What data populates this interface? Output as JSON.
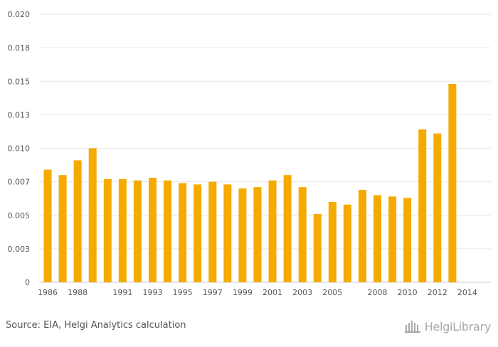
{
  "chart_data": {
    "type": "bar",
    "categories": [
      "1986",
      "1987",
      "1988",
      "1989",
      "1990",
      "1991",
      "1992",
      "1993",
      "1994",
      "1995",
      "1996",
      "1997",
      "1998",
      "1999",
      "2000",
      "2001",
      "2002",
      "2003",
      "2004",
      "2005",
      "2006",
      "2007",
      "2008",
      "2009",
      "2010",
      "2011",
      "2012",
      "2013",
      "2014",
      "2015"
    ],
    "values": [
      0.0084,
      0.008,
      0.0091,
      0.01,
      0.0077,
      0.0077,
      0.0076,
      0.0078,
      0.0076,
      0.0074,
      0.0073,
      0.0075,
      0.0073,
      0.007,
      0.0071,
      0.0076,
      0.008,
      0.0071,
      0.0051,
      0.006,
      0.0058,
      0.0069,
      0.0065,
      0.0064,
      0.0063,
      0.0114,
      0.0111,
      0.0148,
      0.0,
      0.0
    ],
    "tick_labels_x": [
      "1986",
      "1988",
      "1991",
      "1993",
      "1995",
      "1997",
      "1999",
      "2001",
      "2003",
      "2005",
      "2008",
      "2010",
      "2012",
      "2014"
    ],
    "tick_labels_y": [
      "0",
      "0.003",
      "0.005",
      "0.007",
      "0.010",
      "0.013",
      "0.015",
      "0.018",
      "0.020"
    ],
    "ylim": [
      0,
      0.02
    ],
    "grid": true,
    "bar_color": "#f5aa00",
    "title": "",
    "xlabel": "",
    "ylabel": ""
  },
  "footer": {
    "source": "Source: EIA, Helgi Analytics calculation",
    "logo_text": "HelgiLibrary"
  }
}
